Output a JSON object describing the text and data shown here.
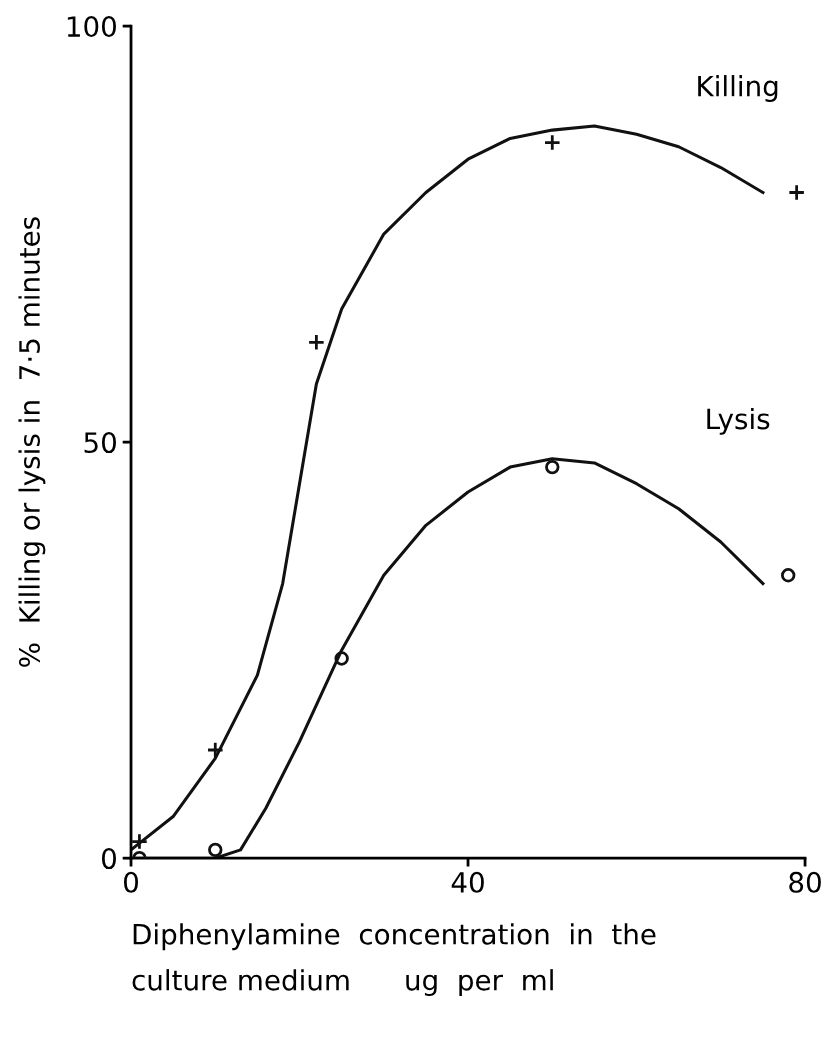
{
  "chart_data": {
    "type": "line",
    "xlabel": "Diphenylamine  concentration  in  the\nculture medium      ug  per  ml",
    "ylabel": "%  Killing or lysis in  7·5 minutes",
    "xlim": [
      0,
      80
    ],
    "ylim": [
      0,
      100
    ],
    "xticks": [
      0,
      40,
      80
    ],
    "yticks": [
      0,
      50,
      100
    ],
    "grid": false,
    "legend": false,
    "series": [
      {
        "name": "Killing",
        "color": "#111111",
        "marker": "none",
        "line_style": "solid",
        "x": [
          0,
          5,
          10,
          15,
          18,
          20,
          22,
          25,
          30,
          35,
          40,
          45,
          50,
          55,
          60,
          65,
          70,
          75
        ],
        "values": [
          1,
          5,
          12,
          22,
          33,
          45,
          57,
          66,
          75,
          80,
          84,
          86.5,
          87.5,
          88,
          87,
          85.5,
          83,
          80
        ]
      },
      {
        "name": "Lysis",
        "color": "#111111",
        "marker": "none",
        "line_style": "solid",
        "x": [
          0,
          10,
          13,
          16,
          20,
          25,
          30,
          35,
          40,
          45,
          50,
          55,
          60,
          65,
          70,
          75
        ],
        "values": [
          0,
          0,
          1,
          6,
          14,
          25,
          34,
          40,
          44,
          47,
          48,
          47.5,
          45,
          42,
          38,
          33
        ]
      },
      {
        "type": "scatter",
        "color": "#111111",
        "marker": "cross",
        "x": [
          1,
          10,
          22,
          50,
          79
        ],
        "values": [
          2,
          13,
          62,
          86,
          80
        ]
      },
      {
        "type": "scatter",
        "color": "#111111",
        "marker": "circle",
        "x": [
          1,
          10,
          25,
          50,
          78
        ],
        "values": [
          0,
          1,
          24,
          47,
          34
        ]
      }
    ]
  }
}
